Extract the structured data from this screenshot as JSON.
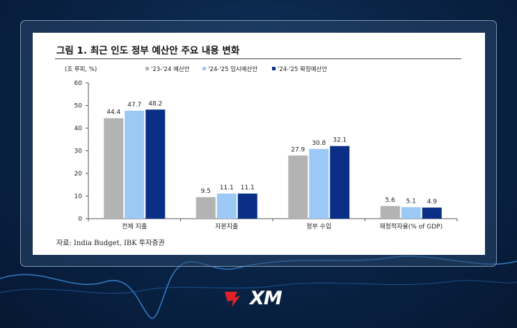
{
  "card": {
    "title": "그림 1. 최근 인도 정부 예산안 주요 내용 변화",
    "source": "자료:  India Budget, IBK 투자증권"
  },
  "logo": {
    "text": "XM",
    "mark_color": "#e4212a"
  },
  "chart_data": {
    "type": "bar",
    "unit_label": "(조 루피, %)",
    "categories": [
      "전체 지출",
      "자본지출",
      "정부 수입",
      "재정적자율(% of GDP)"
    ],
    "series": [
      {
        "name": "'23-'24 예산안",
        "color": "#b3b3b3",
        "values": [
          44.4,
          9.5,
          27.9,
          5.6
        ]
      },
      {
        "name": "'24-'25 임시예산안",
        "color": "#9cc8f5",
        "values": [
          47.7,
          11.1,
          30.8,
          5.1
        ]
      },
      {
        "name": "'24-'25 확정예산안",
        "color": "#0b2f86",
        "values": [
          48.2,
          11.1,
          32.1,
          4.9
        ]
      }
    ],
    "ylim": [
      0,
      60
    ],
    "yticks": [
      0,
      10,
      20,
      30,
      40,
      50,
      60
    ],
    "legend_position": "top-center",
    "grid": false
  }
}
